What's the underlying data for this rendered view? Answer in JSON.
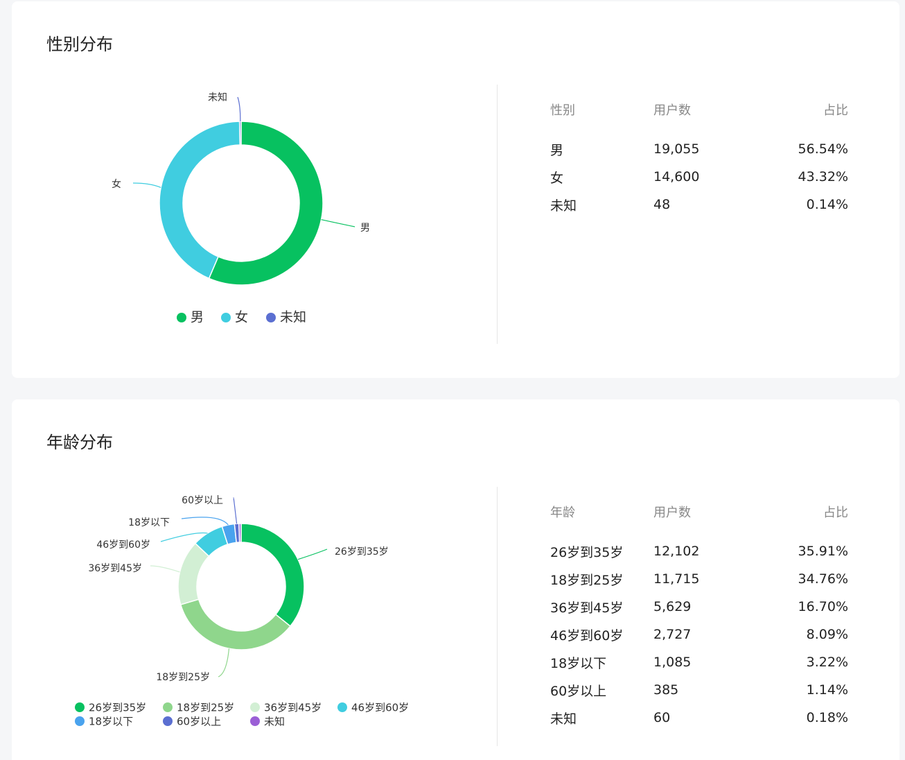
{
  "gender_section": {
    "title": "性别分布",
    "table_headers": [
      "性别",
      "用户数",
      "占比"
    ],
    "rows": [
      {
        "label": "男",
        "count": "19,055",
        "pct": "56.54%"
      },
      {
        "label": "女",
        "count": "14,600",
        "pct": "43.32%"
      },
      {
        "label": "未知",
        "count": "48",
        "pct": "0.14%"
      }
    ]
  },
  "age_section": {
    "title": "年龄分布",
    "table_headers": [
      "年龄",
      "用户数",
      "占比"
    ],
    "rows": [
      {
        "label": "26岁到35岁",
        "count": "12,102",
        "pct": "35.91%"
      },
      {
        "label": "18岁到25岁",
        "count": "11,715",
        "pct": "34.76%"
      },
      {
        "label": "36岁到45岁",
        "count": "5,629",
        "pct": "16.70%"
      },
      {
        "label": "46岁到60岁",
        "count": "2,727",
        "pct": "8.09%"
      },
      {
        "label": "18岁以下",
        "count": "1,085",
        "pct": "3.22%"
      },
      {
        "label": "60岁以上",
        "count": "385",
        "pct": "1.14%"
      },
      {
        "label": "未知",
        "count": "60",
        "pct": "0.18%"
      }
    ]
  },
  "chart_data": [
    {
      "type": "pie",
      "donut": true,
      "title": "",
      "categories": [
        "男",
        "女",
        "未知"
      ],
      "values": [
        19055,
        14600,
        48
      ],
      "colors": [
        "#07c160",
        "#40cde0",
        "#5b6fd1"
      ],
      "legend": "bottom"
    },
    {
      "type": "pie",
      "donut": true,
      "title": "",
      "categories": [
        "26岁到35岁",
        "18岁到25岁",
        "36岁到45岁",
        "46岁到60岁",
        "18岁以下",
        "60岁以上",
        "未知"
      ],
      "values": [
        12102,
        11715,
        5629,
        2727,
        1085,
        385,
        60
      ],
      "colors": [
        "#07c160",
        "#8fd68c",
        "#d2efd4",
        "#40cde0",
        "#4aa3ee",
        "#5b6fd1",
        "#9b5fd6"
      ],
      "legend": "bottom"
    }
  ]
}
